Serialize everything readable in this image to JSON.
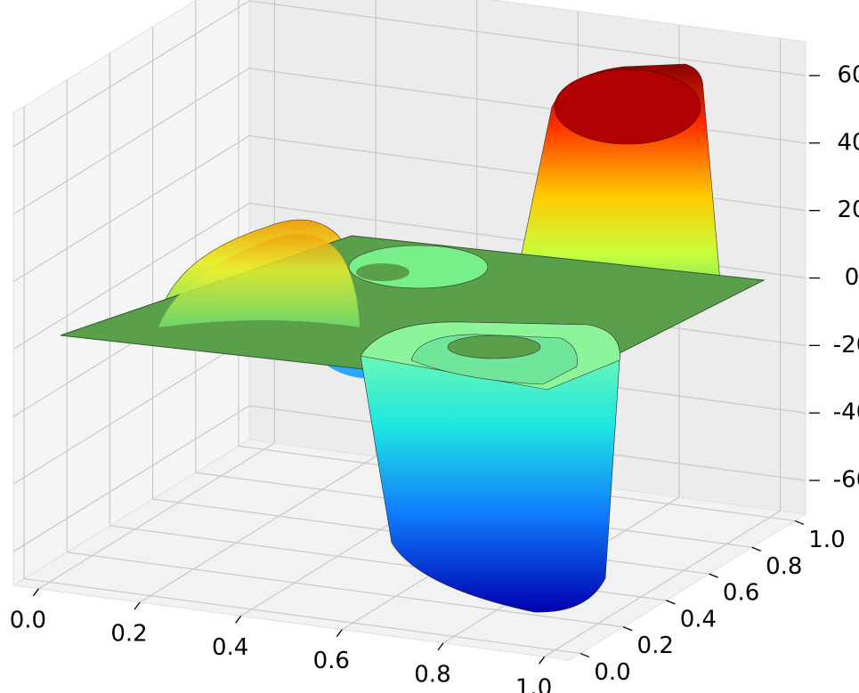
{
  "chart_data": {
    "type": "surface3d",
    "xlim": [
      -0.05,
      1.05
    ],
    "ylim": [
      -0.05,
      1.05
    ],
    "zlim": [
      -70,
      70
    ],
    "xticks": [
      {
        "value": 0,
        "label": "0.0"
      },
      0.2,
      0.4,
      0.6,
      0.8,
      {
        "value": 1,
        "label": "1.0"
      }
    ],
    "yticks": [
      {
        "value": 0,
        "label": "0.0"
      },
      0.2,
      0.4,
      0.6,
      0.8,
      {
        "value": 1,
        "label": "1.0"
      }
    ],
    "zticks": [
      -60,
      -40,
      -20,
      0,
      20,
      40,
      60
    ],
    "grid": true
  }
}
